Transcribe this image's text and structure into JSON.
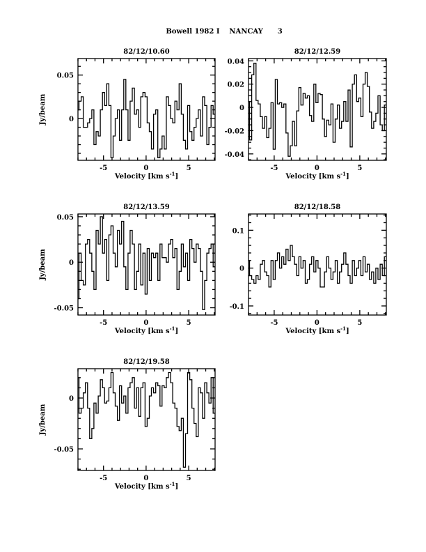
{
  "chart_data": {
    "type": "line",
    "title": "Bowell 1982 I    NANCAY      3",
    "xlabel": "Velocity [km s",
    "xlabel_sup": "-1",
    "xlabel_end": "]",
    "ylabel": "Jy/beam",
    "x_start": -8,
    "x_step": 0.25,
    "xlim": [
      -8,
      8.1
    ],
    "xticks": [
      -5,
      0,
      5
    ],
    "xtick_labels": [
      "-5",
      "0",
      "5"
    ],
    "panels": [
      {
        "title": "82/12/10.60",
        "ylim": [
          -0.048,
          0.069
        ],
        "yticks": [
          0,
          0.05
        ],
        "ytick_labels": [
          "0",
          "0.05"
        ],
        "minor": 0.01,
        "ylabel_shown": true,
        "values": [
          0.01,
          0.02,
          0.025,
          -0.01,
          -0.01,
          -0.005,
          0,
          0.01,
          -0.03,
          -0.015,
          -0.02,
          0.01,
          0.03,
          0.015,
          0.04,
          0.015,
          -0.045,
          -0.02,
          0,
          0.01,
          -0.025,
          0.01,
          0.045,
          0.01,
          -0.025,
          0.02,
          0.035,
          0.005,
          0.01,
          -0.01,
          0.025,
          0.03,
          0.025,
          -0.005,
          -0.015,
          -0.035,
          0.005,
          0.01,
          -0.045,
          -0.035,
          -0.02,
          -0.035,
          0.025,
          0.015,
          0,
          -0.005,
          0.02,
          0.01,
          0.04,
          0.005,
          -0.025,
          -0.035,
          0.015,
          -0.015,
          -0.025,
          -0.01,
          0,
          0.01,
          -0.02,
          0.025,
          0.015,
          -0.03,
          -0.01,
          0.015,
          0.005
        ]
      },
      {
        "title": "82/12/12.59",
        "ylim": [
          -0.0455,
          0.042
        ],
        "yticks": [
          -0.04,
          -0.02,
          0,
          0.02,
          0.04
        ],
        "ytick_labels": [
          "-0.04",
          "-0.02",
          "0",
          "0.02",
          "0.04"
        ],
        "minor": 0.005,
        "ylabel_shown": false,
        "values": [
          0.005,
          -0.028,
          0.028,
          0.038,
          0.006,
          0.003,
          -0.008,
          -0.018,
          -0.008,
          -0.026,
          -0.018,
          0.004,
          -0.036,
          0.024,
          0.003,
          0.004,
          0,
          0.003,
          -0.022,
          -0.042,
          -0.033,
          -0.012,
          -0.033,
          -0.003,
          0.017,
          0.002,
          0.012,
          0.008,
          0.01,
          -0.007,
          -0.012,
          0.02,
          0.004,
          0.012,
          0.011,
          -0.01,
          -0.025,
          -0.011,
          -0.015,
          0.003,
          -0.03,
          -0.01,
          0.002,
          -0.018,
          -0.012,
          0.005,
          -0.012,
          0.015,
          -0.034,
          0.02,
          0.028,
          0.005,
          0.008,
          -0.008,
          0.02,
          0.03,
          0.018,
          -0.004,
          -0.018,
          -0.012,
          -0.005,
          0.01,
          -0.015,
          -0.02,
          0.002
        ]
      },
      {
        "title": "82/12/13.59",
        "ylim": [
          -0.058,
          0.053
        ],
        "yticks": [
          -0.05,
          0,
          0.05
        ],
        "ytick_labels": [
          "-0.05",
          "0",
          "0.05"
        ],
        "minor": 0.01,
        "ylabel_shown": true,
        "values": [
          -0.04,
          0.01,
          -0.02,
          -0.025,
          0.02,
          0.025,
          0.01,
          -0.01,
          -0.03,
          0.035,
          0.02,
          0.05,
          0.01,
          0.025,
          -0.02,
          0.03,
          0.04,
          0.01,
          -0.005,
          0.035,
          0.02,
          0.045,
          -0.005,
          -0.03,
          0.01,
          0.035,
          0.02,
          -0.03,
          -0.01,
          0.02,
          -0.025,
          0.01,
          -0.035,
          0.015,
          -0.02,
          0.01,
          0.005,
          0.01,
          -0.02,
          0.02,
          0.005,
          0.005,
          0,
          0.02,
          0.025,
          0.005,
          0.015,
          -0.03,
          -0.01,
          0.02,
          -0.005,
          0.01,
          -0.02,
          0.025,
          0.015,
          0,
          0.02,
          0.015,
          -0.01,
          -0.052,
          -0.02,
          0.01,
          0.015,
          0.02,
          -0.005
        ]
      },
      {
        "title": "82/12/18.58",
        "ylim": [
          -0.124,
          0.143
        ],
        "yticks": [
          -0.1,
          0,
          0.1
        ],
        "ytick_labels": [
          "-0.1",
          "0",
          "0.1"
        ],
        "minor": 0.02,
        "ylabel_shown": false,
        "values": [
          0.02,
          -0.02,
          -0.03,
          -0.04,
          -0.02,
          -0.03,
          0.01,
          0.02,
          -0.01,
          -0.02,
          -0.05,
          0.02,
          -0.03,
          0.02,
          0.04,
          0,
          0.03,
          0.01,
          0.05,
          0.02,
          0.06,
          0.03,
          0.01,
          -0.02,
          0.03,
          0,
          0.02,
          -0.04,
          -0.03,
          0.01,
          0.03,
          -0.01,
          0.02,
          0,
          -0.05,
          -0.05,
          -0.01,
          0.03,
          0,
          -0.03,
          -0.01,
          0.02,
          -0.04,
          -0.01,
          0.01,
          0.04,
          0.01,
          -0.02,
          -0.04,
          0.02,
          -0.02,
          0,
          0.02,
          -0.02,
          0.03,
          -0.01,
          0.01,
          -0.03,
          -0.01,
          -0.04,
          0,
          -0.03,
          0.01,
          -0.02,
          0.03
        ]
      },
      {
        "title": "82/12/19.58",
        "ylim": [
          -0.0712,
          0.0288
        ],
        "yticks": [
          -0.05,
          0
        ],
        "ytick_labels": [
          "-0.05",
          "0"
        ],
        "minor": 0.01,
        "ylabel_shown": true,
        "values": [
          0.02,
          -0.015,
          -0.01,
          0.005,
          0.015,
          -0.01,
          -0.04,
          -0.03,
          -0.005,
          -0.015,
          0.002,
          0.018,
          0.01,
          -0.005,
          -0.003,
          0.01,
          0.025,
          0.005,
          -0.008,
          -0.022,
          0.012,
          -0.005,
          0.002,
          -0.015,
          0.01,
          0.015,
          0.02,
          -0.01,
          0.01,
          -0.018,
          0.01,
          0.015,
          -0.028,
          -0.02,
          0.002,
          0.01,
          0.005,
          0.015,
          0.012,
          -0.008,
          0.012,
          0.01,
          0.02,
          0.025,
          0.015,
          -0.005,
          -0.01,
          -0.028,
          -0.032,
          -0.02,
          -0.068,
          -0.035,
          0.025,
          0.018,
          -0.01,
          -0.025,
          -0.038,
          0.01,
          0.005,
          -0.02,
          0.015,
          0.005,
          -0.005,
          0.02,
          -0.015
        ]
      }
    ]
  }
}
